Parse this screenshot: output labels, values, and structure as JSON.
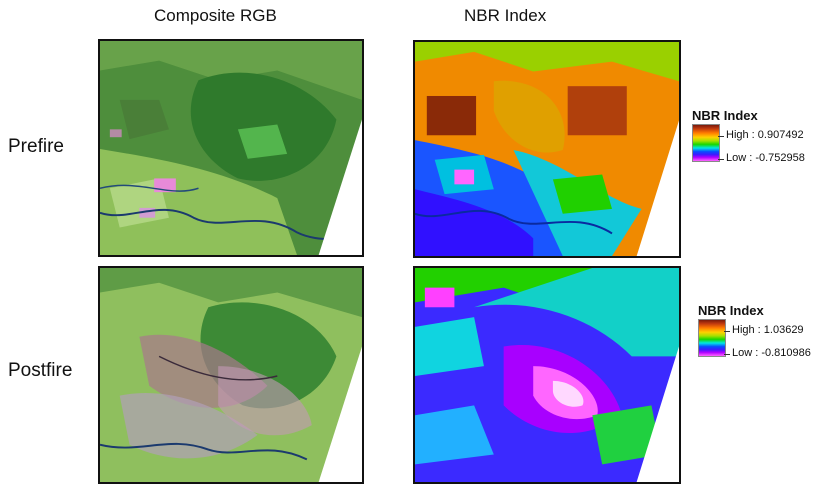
{
  "columns": {
    "composite": "Composite RGB",
    "nbr": "NBR Index"
  },
  "rows": {
    "prefire": "Prefire",
    "postfire": "Postfire"
  },
  "legends": {
    "prefire": {
      "title": "NBR Index",
      "high": "High : 0.907492",
      "low": "Low : -0.752958"
    },
    "postfire": {
      "title": "NBR Index",
      "high": "High : 1.03629",
      "low": "Low : -0.810986"
    }
  }
}
